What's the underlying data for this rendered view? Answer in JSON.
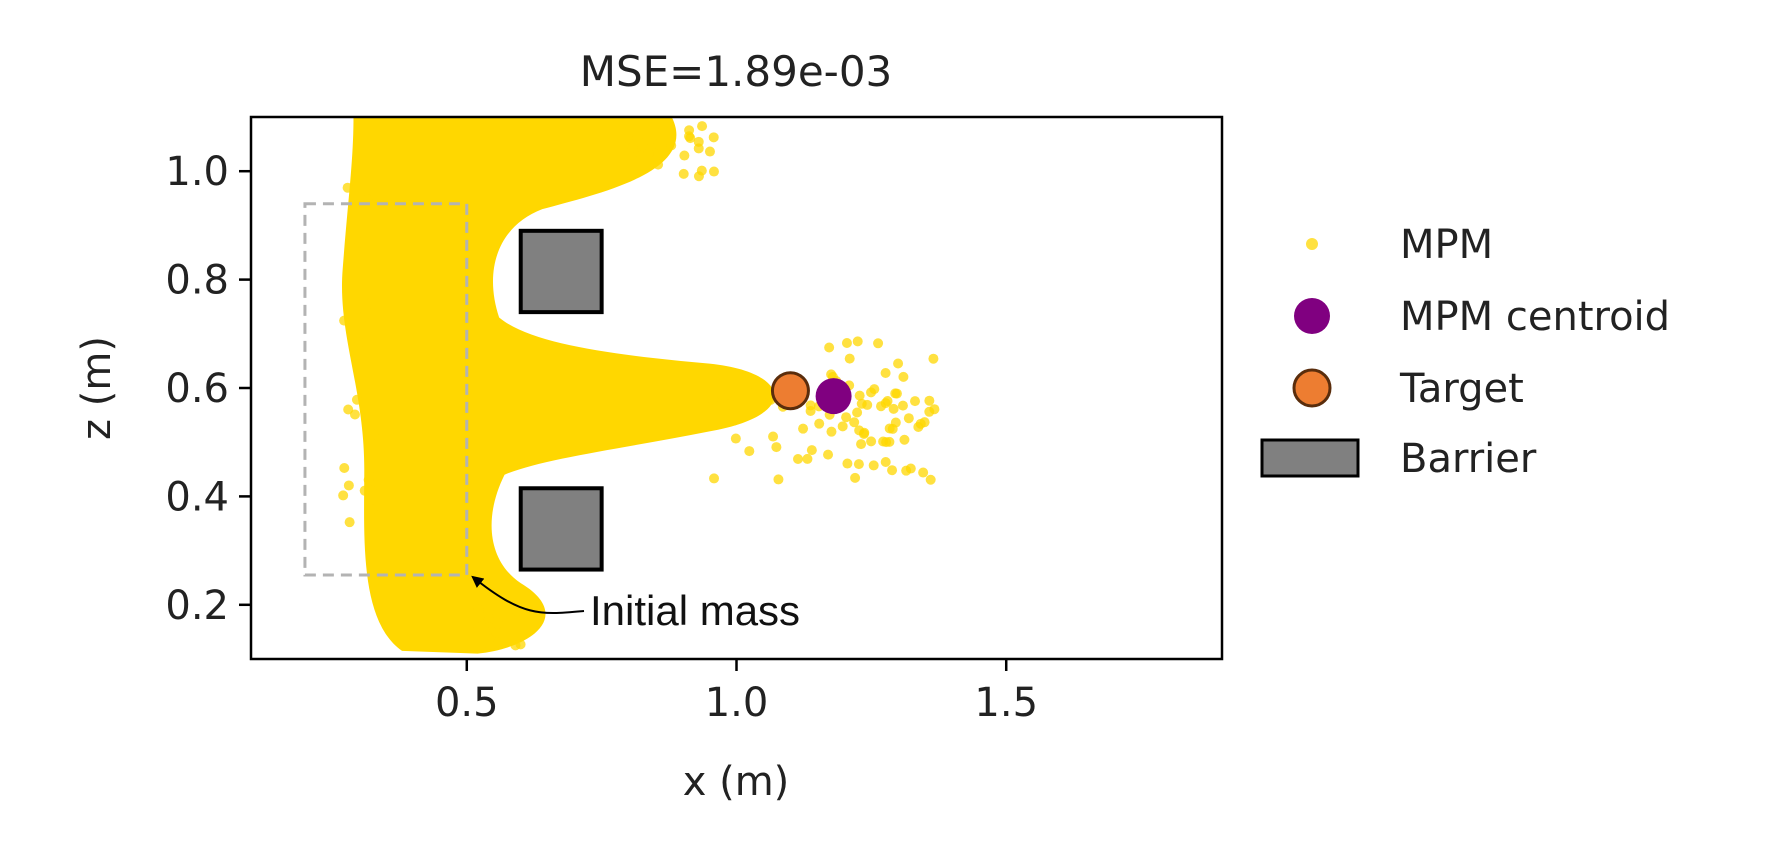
{
  "chart_data": {
    "type": "scatter",
    "title": "MSE=1.89e-03",
    "xlabel": "x (m)",
    "ylabel": "z (m)",
    "xlim": [
      0.1,
      1.9
    ],
    "ylim": [
      0.1,
      1.1
    ],
    "xticks": [
      0.5,
      1.0,
      1.5
    ],
    "yticks": [
      0.2,
      0.4,
      0.6,
      0.8,
      1.0
    ],
    "grid": false,
    "legend_position": "right, outside plot",
    "colors": {
      "mpm": "#FFD700",
      "centroid": "#800080",
      "target": "#ED7D31",
      "target_edge": "#5a2d0c",
      "barrier": "#808080",
      "barrier_edge": "#000000",
      "initial_box": "#b3b3b3"
    },
    "series": [
      {
        "name": "MPM",
        "marker": "dot",
        "description_region": "yellow particle cloud"
      },
      {
        "name": "MPM centroid",
        "marker": "circle",
        "points": [
          [
            1.18,
            0.585
          ]
        ]
      },
      {
        "name": "Target",
        "marker": "circle",
        "points": [
          [
            1.1,
            0.595
          ]
        ]
      }
    ],
    "barriers": [
      {
        "name": "Barrier",
        "x": [
          0.6,
          0.75
        ],
        "z": [
          0.74,
          0.89
        ]
      },
      {
        "name": "Barrier",
        "x": [
          0.6,
          0.75
        ],
        "z": [
          0.265,
          0.415
        ]
      }
    ],
    "initial_mass_box": {
      "x": [
        0.2,
        0.5
      ],
      "z": [
        0.255,
        0.94
      ]
    },
    "annotations": [
      {
        "text": "Initial mass",
        "points_to": [
          0.5,
          0.255
        ]
      }
    ]
  },
  "legend": {
    "items": [
      {
        "label": "MPM"
      },
      {
        "label": "MPM centroid"
      },
      {
        "label": "Target"
      },
      {
        "label": "Barrier"
      }
    ]
  }
}
